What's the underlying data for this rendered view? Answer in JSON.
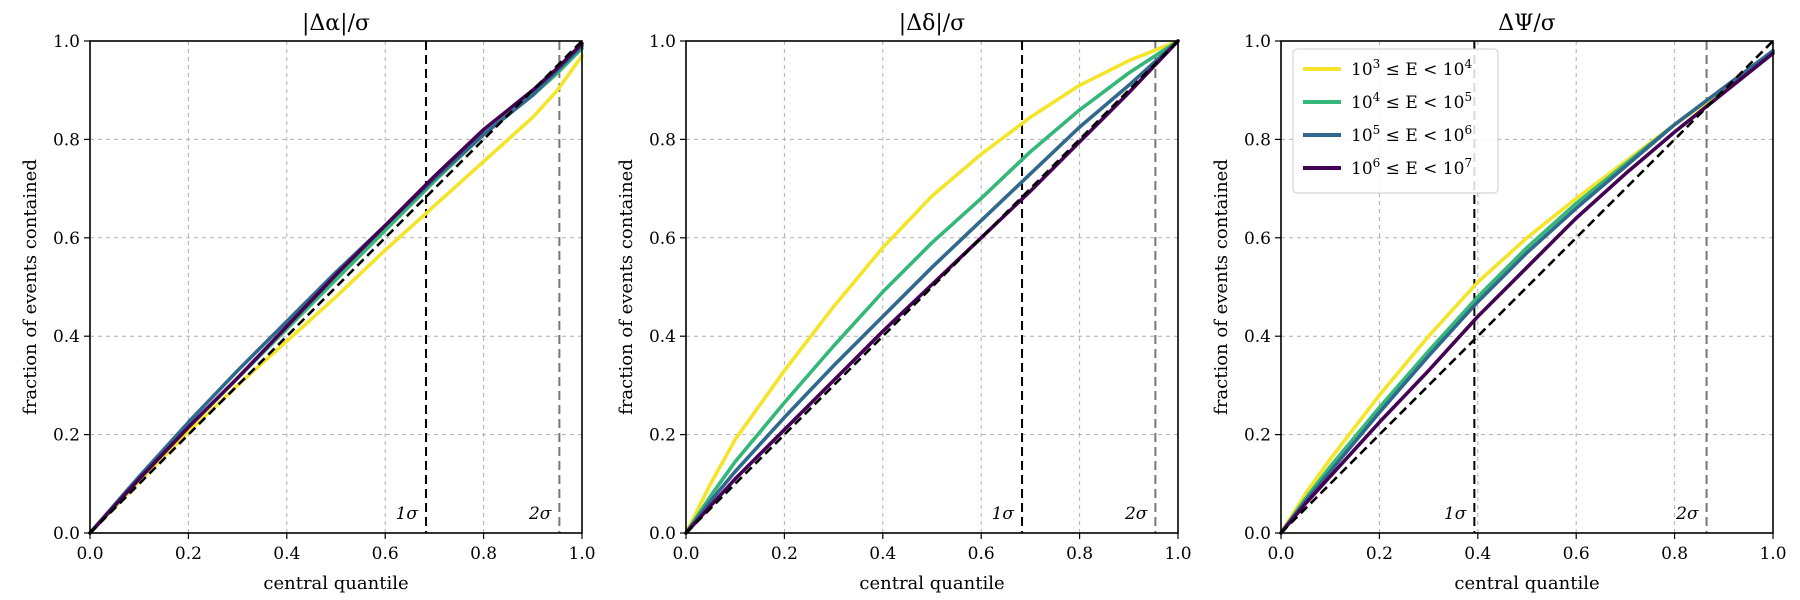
{
  "chart_data": [
    {
      "type": "line",
      "title": "|Δα|/σ",
      "xlabel": "central quantile",
      "ylabel": "fraction of events contained",
      "xlim": [
        0,
        1
      ],
      "ylim": [
        0,
        1
      ],
      "xticks": [
        "0.0",
        "0.2",
        "0.4",
        "0.6",
        "0.8",
        "1.0"
      ],
      "yticks": [
        "0.0",
        "0.2",
        "0.4",
        "0.6",
        "0.8",
        "1.0"
      ],
      "grid": true,
      "reference_lines": [
        {
          "x": 0.683,
          "label": "1σ",
          "color": "#000000"
        },
        {
          "x": 0.954,
          "label": "2σ",
          "color": "#777777"
        }
      ],
      "diagonal": true,
      "series": [
        {
          "color": "#f5e52a",
          "x": [
            0,
            0.1,
            0.2,
            0.3,
            0.4,
            0.5,
            0.6,
            0.7,
            0.8,
            0.9,
            0.95,
            1.0
          ],
          "y": [
            0,
            0.105,
            0.205,
            0.3,
            0.39,
            0.48,
            0.575,
            0.665,
            0.755,
            0.845,
            0.9,
            0.97
          ]
        },
        {
          "color": "#35b779",
          "x": [
            0,
            0.1,
            0.2,
            0.3,
            0.4,
            0.5,
            0.6,
            0.7,
            0.8,
            0.9,
            0.95,
            1.0
          ],
          "y": [
            0,
            0.11,
            0.215,
            0.315,
            0.415,
            0.515,
            0.615,
            0.715,
            0.81,
            0.89,
            0.935,
            0.985
          ]
        },
        {
          "color": "#31688e",
          "x": [
            0,
            0.1,
            0.2,
            0.3,
            0.4,
            0.5,
            0.6,
            0.7,
            0.8,
            0.9,
            0.95,
            1.0
          ],
          "y": [
            0,
            0.115,
            0.225,
            0.33,
            0.43,
            0.53,
            0.625,
            0.72,
            0.81,
            0.89,
            0.94,
            0.99
          ]
        },
        {
          "color": "#440154",
          "x": [
            0,
            0.1,
            0.2,
            0.3,
            0.4,
            0.5,
            0.6,
            0.7,
            0.8,
            0.9,
            0.95,
            1.0
          ],
          "y": [
            0,
            0.11,
            0.215,
            0.315,
            0.42,
            0.525,
            0.625,
            0.725,
            0.82,
            0.9,
            0.945,
            0.995
          ]
        }
      ]
    },
    {
      "type": "line",
      "title": "|Δδ|/σ",
      "xlabel": "central quantile",
      "ylabel": "fraction of events contained",
      "xlim": [
        0,
        1
      ],
      "ylim": [
        0,
        1
      ],
      "xticks": [
        "0.0",
        "0.2",
        "0.4",
        "0.6",
        "0.8",
        "1.0"
      ],
      "yticks": [
        "0.0",
        "0.2",
        "0.4",
        "0.6",
        "0.8",
        "1.0"
      ],
      "grid": true,
      "reference_lines": [
        {
          "x": 0.683,
          "label": "1σ",
          "color": "#000000"
        },
        {
          "x": 0.954,
          "label": "2σ",
          "color": "#777777"
        }
      ],
      "diagonal": true,
      "series": [
        {
          "color": "#f5e52a",
          "x": [
            0,
            0.05,
            0.1,
            0.2,
            0.3,
            0.4,
            0.5,
            0.6,
            0.7,
            0.8,
            0.9,
            1.0
          ],
          "y": [
            0,
            0.1,
            0.19,
            0.33,
            0.46,
            0.58,
            0.685,
            0.77,
            0.845,
            0.91,
            0.96,
            1.0
          ]
        },
        {
          "color": "#35b779",
          "x": [
            0,
            0.05,
            0.1,
            0.2,
            0.3,
            0.4,
            0.5,
            0.6,
            0.7,
            0.8,
            0.9,
            1.0
          ],
          "y": [
            0,
            0.075,
            0.145,
            0.265,
            0.38,
            0.49,
            0.59,
            0.68,
            0.775,
            0.86,
            0.935,
            1.0
          ]
        },
        {
          "color": "#31688e",
          "x": [
            0,
            0.05,
            0.1,
            0.2,
            0.3,
            0.4,
            0.5,
            0.6,
            0.7,
            0.8,
            0.9,
            1.0
          ],
          "y": [
            0,
            0.065,
            0.125,
            0.235,
            0.34,
            0.44,
            0.54,
            0.635,
            0.73,
            0.825,
            0.91,
            1.0
          ]
        },
        {
          "color": "#440154",
          "x": [
            0,
            0.05,
            0.1,
            0.2,
            0.3,
            0.4,
            0.5,
            0.6,
            0.7,
            0.8,
            0.9,
            1.0
          ],
          "y": [
            0,
            0.055,
            0.11,
            0.21,
            0.31,
            0.41,
            0.505,
            0.6,
            0.695,
            0.795,
            0.895,
            1.0
          ]
        }
      ]
    },
    {
      "type": "line",
      "title": "ΔΨ/σ",
      "xlabel": "central quantile",
      "ylabel": "fraction of events contained",
      "xlim": [
        0,
        1
      ],
      "ylim": [
        0,
        1
      ],
      "xticks": [
        "0.0",
        "0.2",
        "0.4",
        "0.6",
        "0.8",
        "1.0"
      ],
      "yticks": [
        "0.0",
        "0.2",
        "0.4",
        "0.6",
        "0.8",
        "1.0"
      ],
      "grid": true,
      "reference_lines": [
        {
          "x": 0.393,
          "label": "1σ",
          "color": "#000000"
        },
        {
          "x": 0.865,
          "label": "2σ",
          "color": "#777777"
        }
      ],
      "diagonal": true,
      "legend": {
        "placement": "top-left",
        "entries": [
          {
            "base1": "10",
            "exp1": "3",
            "mid": " ≤ E < ",
            "base2": "10",
            "exp2": "4",
            "color": "#f5e52a"
          },
          {
            "base1": "10",
            "exp1": "4",
            "mid": " ≤ E < ",
            "base2": "10",
            "exp2": "5",
            "color": "#35b779"
          },
          {
            "base1": "10",
            "exp1": "5",
            "mid": " ≤ E < ",
            "base2": "10",
            "exp2": "6",
            "color": "#31688e"
          },
          {
            "base1": "10",
            "exp1": "6",
            "mid": " ≤ E < ",
            "base2": "10",
            "exp2": "7",
            "color": "#440154"
          }
        ]
      },
      "series": [
        {
          "color": "#f5e52a",
          "x": [
            0,
            0.05,
            0.1,
            0.2,
            0.3,
            0.4,
            0.5,
            0.6,
            0.7,
            0.8,
            0.9,
            1.0
          ],
          "y": [
            0,
            0.08,
            0.15,
            0.28,
            0.4,
            0.51,
            0.6,
            0.68,
            0.755,
            0.83,
            0.9,
            0.98
          ]
        },
        {
          "color": "#35b779",
          "x": [
            0,
            0.05,
            0.1,
            0.2,
            0.3,
            0.4,
            0.5,
            0.6,
            0.7,
            0.8,
            0.9,
            1.0
          ],
          "y": [
            0,
            0.07,
            0.135,
            0.255,
            0.37,
            0.48,
            0.58,
            0.67,
            0.75,
            0.83,
            0.905,
            0.98
          ]
        },
        {
          "color": "#31688e",
          "x": [
            0,
            0.05,
            0.1,
            0.2,
            0.3,
            0.4,
            0.5,
            0.6,
            0.7,
            0.8,
            0.9,
            1.0
          ],
          "y": [
            0,
            0.065,
            0.125,
            0.245,
            0.36,
            0.47,
            0.57,
            0.66,
            0.745,
            0.83,
            0.905,
            0.98
          ]
        },
        {
          "color": "#440154",
          "x": [
            0,
            0.05,
            0.1,
            0.2,
            0.3,
            0.4,
            0.5,
            0.6,
            0.7,
            0.8,
            0.9,
            1.0
          ],
          "y": [
            0,
            0.06,
            0.115,
            0.225,
            0.33,
            0.44,
            0.54,
            0.64,
            0.73,
            0.815,
            0.895,
            0.975
          ]
        }
      ]
    }
  ]
}
